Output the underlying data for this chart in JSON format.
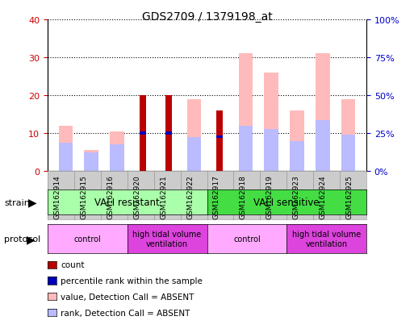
{
  "title": "GDS2709 / 1379198_at",
  "samples": [
    "GSM162914",
    "GSM162915",
    "GSM162916",
    "GSM162920",
    "GSM162921",
    "GSM162922",
    "GSM162917",
    "GSM162918",
    "GSM162919",
    "GSM162923",
    "GSM162924",
    "GSM162925"
  ],
  "count": [
    0,
    0,
    0,
    20,
    20,
    0,
    16,
    0,
    0,
    0,
    0,
    0
  ],
  "percentile_rank": [
    0,
    0,
    0,
    10,
    10,
    0,
    9,
    0,
    0,
    0,
    0,
    0
  ],
  "value_absent": [
    12,
    5.5,
    10.5,
    0,
    0,
    19,
    0,
    31,
    26,
    16,
    31,
    19
  ],
  "rank_absent": [
    7.5,
    5,
    7,
    0,
    0,
    9,
    0,
    12,
    11,
    8,
    13.5,
    9.5
  ],
  "count_color": "#bb0000",
  "percentile_color": "#0000bb",
  "value_absent_color": "#ffbbbb",
  "rank_absent_color": "#bbbbff",
  "ylim_left": [
    0,
    40
  ],
  "ylim_right": [
    0,
    100
  ],
  "yticks_left": [
    0,
    10,
    20,
    30,
    40
  ],
  "yticks_right": [
    0,
    25,
    50,
    75,
    100
  ],
  "ytick_labels_right": [
    "0%",
    "25%",
    "50%",
    "75%",
    "100%"
  ],
  "strain_resistant_color": "#aaffaa",
  "strain_sensitive_color": "#44dd44",
  "protocol_control_color": "#ffaaff",
  "protocol_htv_color": "#dd44dd",
  "tick_label_color_left": "#cc0000",
  "tick_label_color_right": "#0000cc",
  "legend_items": [
    {
      "label": "count",
      "color": "#bb0000"
    },
    {
      "label": "percentile rank within the sample",
      "color": "#0000bb"
    },
    {
      "label": "value, Detection Call = ABSENT",
      "color": "#ffbbbb"
    },
    {
      "label": "rank, Detection Call = ABSENT",
      "color": "#bbbbff"
    }
  ]
}
